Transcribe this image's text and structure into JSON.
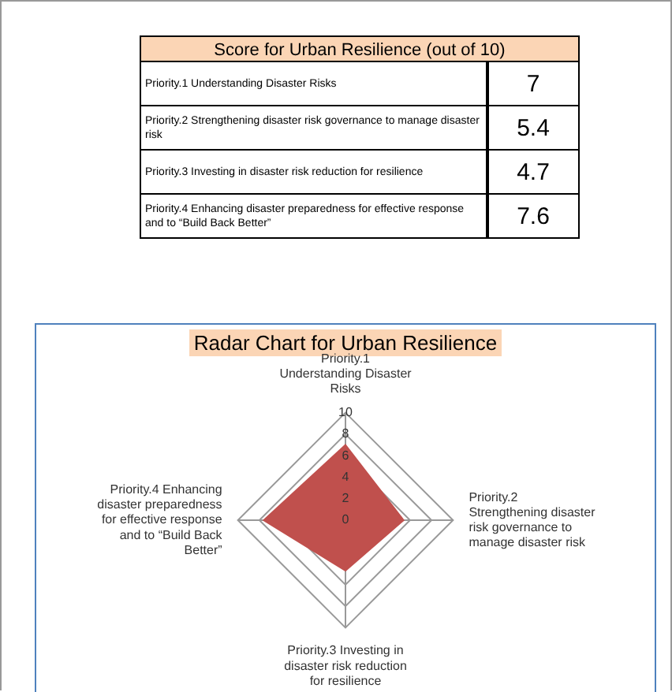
{
  "chart_data": [
    {
      "type": "other",
      "title": "Score for Urban Resilience (out of 10)",
      "annotations": [
        "Priority.1 Understanding Disaster Risks",
        "7",
        "Priority.2 Strengthening disaster risk governance to manage disaster risk",
        "5.4",
        "Priority.3 Investing in disaster risk reduction for resilience",
        "4.7",
        "Priority.4 Enhancing disaster preparedness for effective response and to “Build Back Better”",
        "7.6"
      ]
    },
    {
      "type": "radar",
      "title": "Radar Chart for Urban Resilience",
      "categories": [
        "Priority.1 Understanding Disaster Risks",
        "Priority.2 Strengthening disaster risk governance to manage disaster risk",
        "Priority.3 Investing in disaster risk reduction for resilience",
        "Priority.4 Enhancing disaster preparedness for effective response and to “Build Back Better”"
      ],
      "series": [
        {
          "color": "#c0504d",
          "values": [
            7,
            5.4,
            4.7,
            7.6
          ]
        }
      ],
      "ylim": [
        0,
        10
      ],
      "yticks": [
        0,
        2,
        4,
        6,
        8,
        10
      ],
      "grid": true,
      "legend": false
    }
  ]
}
